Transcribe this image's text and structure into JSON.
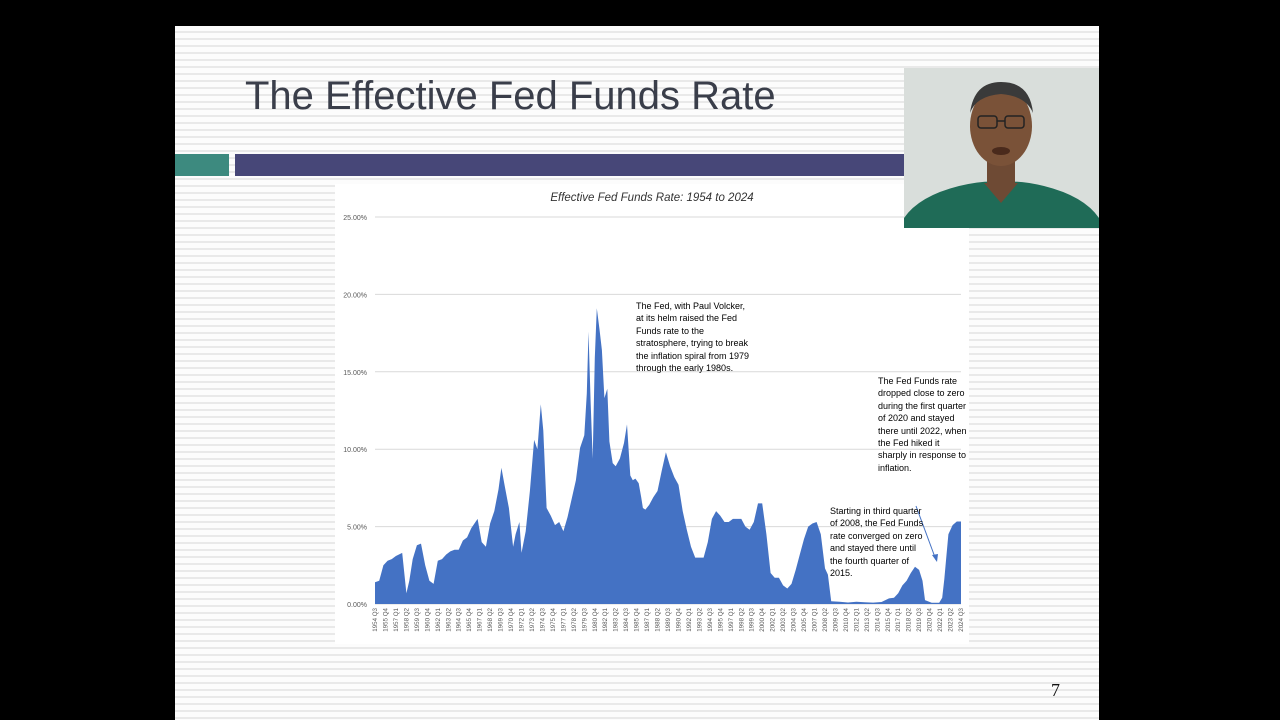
{
  "slide": {
    "title": "The Effective Fed Funds Rate",
    "page_number": "7",
    "colors": {
      "accent_left": "#3d8a7f",
      "accent_right": "#474778",
      "title": "#3a3e4a"
    }
  },
  "annotations": {
    "volcker": "The Fed, with Paul Volcker, at its helm raised the Fed Funds rate to the stratosphere, trying to break the inflation spiral from 1979 through the early 1980s.",
    "y2008": "Starting in third quarter of 2008, the Fed Funds rate converged on zero and stayed there until the fourth quarter of 2015.",
    "y2020": "The Fed Funds rate dropped close to zero during the first quarter of 2020 and stayed there until 2022, when the Fed hiked it sharply in response to inflation."
  },
  "presenter": {
    "icon": "presenter-video-icon"
  },
  "chart_data": {
    "type": "area",
    "title": "Effective Fed Funds Rate: 1954 to 2024",
    "xlabel": "",
    "ylabel": "",
    "ylim": [
      0,
      25
    ],
    "y_ticks": [
      "0.00%",
      "5.00%",
      "10.00%",
      "15.00%",
      "20.00%",
      "25.00%"
    ],
    "grid": true,
    "legend": "none",
    "color": "#4472c4",
    "x_tick_labels": [
      "1954 Q3",
      "1955 Q4",
      "1957 Q1",
      "1958 Q2",
      "1959 Q3",
      "1960 Q4",
      "1962 Q1",
      "1963 Q2",
      "1964 Q3",
      "1965 Q4",
      "1967 Q1",
      "1968 Q2",
      "1969 Q3",
      "1970 Q4",
      "1972 Q1",
      "1973 Q2",
      "1974 Q3",
      "1975 Q4",
      "1977 Q1",
      "1978 Q2",
      "1979 Q3",
      "1980 Q4",
      "1982 Q1",
      "1983 Q2",
      "1984 Q3",
      "1985 Q4",
      "1987 Q1",
      "1988 Q2",
      "1989 Q3",
      "1990 Q4",
      "1992 Q1",
      "1993 Q2",
      "1994 Q3",
      "1995 Q4",
      "1997 Q1",
      "1998 Q2",
      "1999 Q3",
      "2000 Q4",
      "2002 Q1",
      "2003 Q2",
      "2004 Q3",
      "2005 Q4",
      "2007 Q1",
      "2008 Q2",
      "2009 Q3",
      "2010 Q4",
      "2012 Q1",
      "2013 Q2",
      "2014 Q3",
      "2015 Q4",
      "2017 Q1",
      "2018 Q2",
      "2019 Q3",
      "2020 Q4",
      "2022 Q1",
      "2023 Q2",
      "2024 Q3"
    ],
    "x": [
      1954.5,
      1955.0,
      1955.5,
      1956.0,
      1956.5,
      1957.0,
      1957.75,
      1958.25,
      1958.6,
      1959.0,
      1959.5,
      1960.0,
      1960.5,
      1961.0,
      1961.5,
      1962.0,
      1962.5,
      1963.0,
      1963.5,
      1964.0,
      1964.5,
      1965.0,
      1965.5,
      1966.0,
      1966.75,
      1967.25,
      1967.75,
      1968.25,
      1968.75,
      1969.25,
      1969.6,
      1970.0,
      1970.5,
      1971.0,
      1971.3,
      1971.75,
      1972.0,
      1972.5,
      1973.0,
      1973.5,
      1973.9,
      1974.3,
      1974.6,
      1975.0,
      1975.5,
      1976.0,
      1976.5,
      1977.0,
      1977.5,
      1978.0,
      1978.5,
      1979.0,
      1979.5,
      1979.8,
      1980.0,
      1980.25,
      1980.5,
      1980.75,
      1981.0,
      1981.3,
      1981.6,
      1981.9,
      1982.25,
      1982.5,
      1982.9,
      1983.25,
      1983.75,
      1984.25,
      1984.6,
      1985.0,
      1985.3,
      1985.6,
      1986.0,
      1986.3,
      1986.5,
      1986.8,
      1987.25,
      1987.75,
      1988.25,
      1988.75,
      1989.25,
      1989.75,
      1990.25,
      1990.75,
      1991.25,
      1991.75,
      1992.25,
      1992.75,
      1993.25,
      1993.75,
      1994.25,
      1994.75,
      1995.25,
      1995.75,
      1996.25,
      1996.75,
      1997.25,
      1997.75,
      1998.25,
      1998.75,
      1999.25,
      1999.75,
      2000.25,
      2000.75,
      2001.25,
      2001.75,
      2002.25,
      2002.75,
      2003.25,
      2003.75,
      2004.25,
      2004.75,
      2005.25,
      2005.75,
      2006.25,
      2006.75,
      2007.25,
      2007.75,
      2008.25,
      2008.6,
      2009.0,
      2010.0,
      2011.0,
      2012.0,
      2013.0,
      2014.0,
      2015.0,
      2015.9,
      2016.5,
      2017.0,
      2017.5,
      2018.0,
      2018.5,
      2019.0,
      2019.5,
      2019.9,
      2020.2,
      2021.0,
      2021.9,
      2022.25,
      2022.5,
      2022.75,
      2023.0,
      2023.5,
      2024.0,
      2024.5
    ],
    "values": [
      1.4,
      1.5,
      2.5,
      2.8,
      2.9,
      3.1,
      3.3,
      0.7,
      1.5,
      2.9,
      3.8,
      3.9,
      2.5,
      1.5,
      1.3,
      2.8,
      2.9,
      3.2,
      3.4,
      3.5,
      3.5,
      4.1,
      4.3,
      4.9,
      5.5,
      4.0,
      3.7,
      5.2,
      6.0,
      7.4,
      8.8,
      7.6,
      6.2,
      3.7,
      4.5,
      5.3,
      3.3,
      4.7,
      7.3,
      10.6,
      10.0,
      12.9,
      11.2,
      6.2,
      5.7,
      5.1,
      5.3,
      4.7,
      5.6,
      6.8,
      8.0,
      10.1,
      10.9,
      13.6,
      17.6,
      13.1,
      9.4,
      15.9,
      19.1,
      17.8,
      16.4,
      13.3,
      13.9,
      10.5,
      9.1,
      8.9,
      9.4,
      10.4,
      11.6,
      8.3,
      8.0,
      8.1,
      7.8,
      6.9,
      6.2,
      6.1,
      6.4,
      6.9,
      7.3,
      8.6,
      9.8,
      8.9,
      8.2,
      7.7,
      6.0,
      4.8,
      3.7,
      3.0,
      3.0,
      3.0,
      4.0,
      5.5,
      6.0,
      5.7,
      5.3,
      5.3,
      5.5,
      5.5,
      5.5,
      5.0,
      4.8,
      5.3,
      6.5,
      6.5,
      4.5,
      2.0,
      1.7,
      1.7,
      1.2,
      1.0,
      1.3,
      2.2,
      3.2,
      4.2,
      5.0,
      5.2,
      5.3,
      4.5,
      2.3,
      1.9,
      0.18,
      0.15,
      0.1,
      0.14,
      0.11,
      0.09,
      0.13,
      0.36,
      0.4,
      0.7,
      1.2,
      1.5,
      2.0,
      2.4,
      2.2,
      1.5,
      0.25,
      0.08,
      0.08,
      0.4,
      1.6,
      3.1,
      4.5,
      5.1,
      5.33,
      5.33
    ]
  }
}
